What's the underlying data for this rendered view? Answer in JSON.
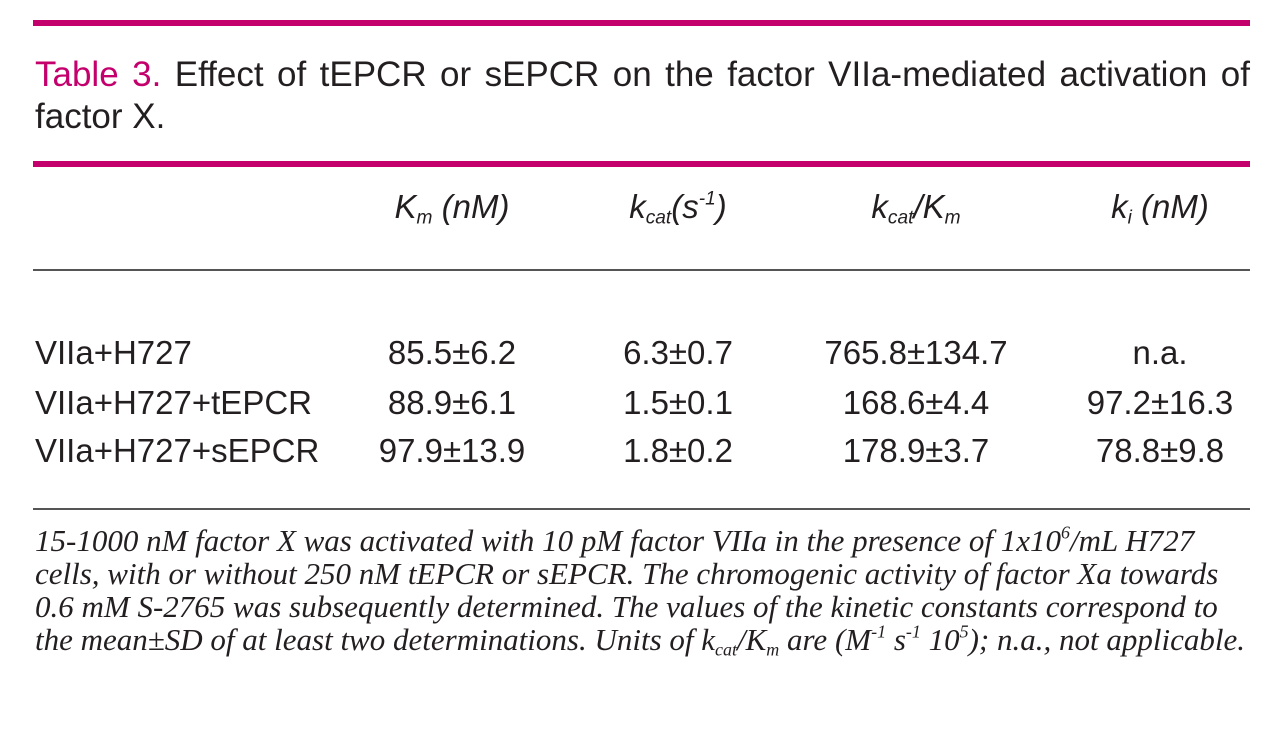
{
  "table": {
    "label": "Table 3.",
    "title": "Effect of tEPCR or sEPCR on the factor VIIa-mediated activation of factor X.",
    "headers": [
      [
        "K",
        "m",
        " (nM)"
      ],
      [
        "k",
        "cat",
        "(s",
        "-1",
        ")"
      ],
      [
        "k",
        "cat",
        "/K",
        "m"
      ],
      [
        "k",
        "i",
        " (nM)"
      ]
    ],
    "rows": [
      [
        "VIIa+H727",
        "85.5±6.2",
        "6.3±0.7",
        "765.8±134.7",
        "n.a."
      ],
      [
        "VIIa+H727+tEPCR",
        "88.9±6.1",
        "1.5±0.1",
        "168.6±4.4",
        "97.2±16.3"
      ],
      [
        "VIIa+H727+sEPCR",
        "97.9±13.9",
        "1.8±0.2",
        "178.9±3.7",
        "78.8±9.8"
      ]
    ],
    "footnote": [
      "15-1000 nM factor X was activated with 10 pM factor VIIa in the presence of 1x10",
      "6",
      "/mL H727 cells, with or without 250 nM tEPCR or sEPCR. The chromogenic activity of factor Xa towards 0.6 mM S-2765 was subsequently determined. The values of the kinetic constants correspond to the mean±SD of at least two determinations. Units of k",
      "cat",
      "/K",
      "m",
      " are (M",
      "-1",
      " s",
      "-1",
      " 10",
      "5",
      "); n.a., not applicable."
    ]
  }
}
